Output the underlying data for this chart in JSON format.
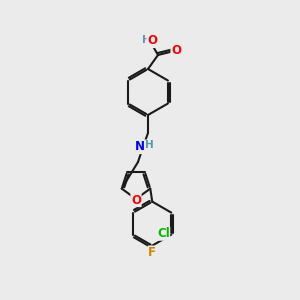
{
  "background_color": "#ebebeb",
  "bond_color": "#1a1a1a",
  "bond_width": 1.5,
  "atom_colors": {
    "O": "#ff0000",
    "N": "#0000ff",
    "Cl": "#00bb00",
    "F": "#cc8800",
    "C": "#1a1a1a",
    "H": "#5599aa"
  },
  "font_size": 8.5
}
